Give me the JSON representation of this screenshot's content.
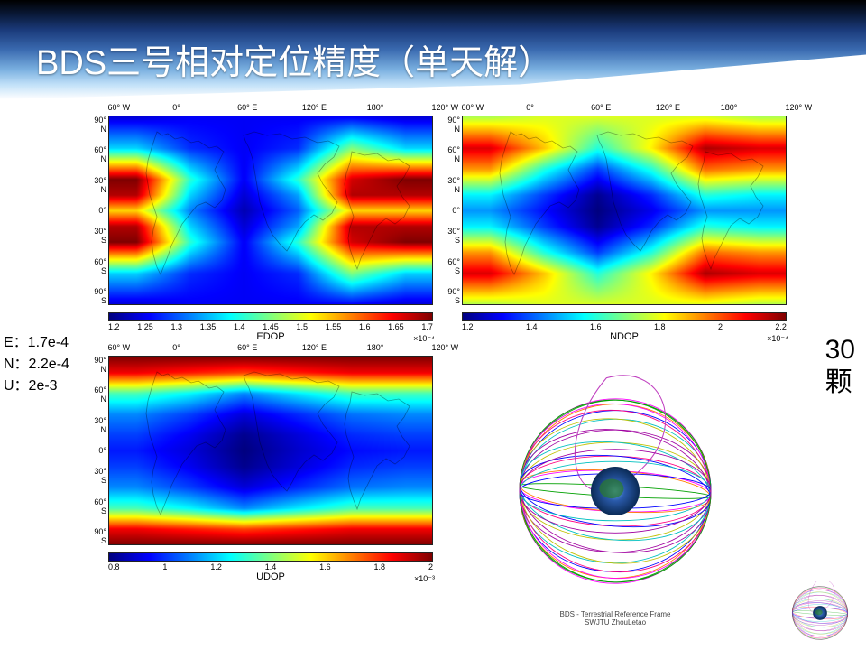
{
  "title": {
    "text": "BDS三号相对定位精度（单天解）",
    "fontsize": 38,
    "color": "#ffffff"
  },
  "side_labels": {
    "E": "E：1.7e-4",
    "N": "N：2.2e-4",
    "U": "U：2e-3"
  },
  "sat_count": {
    "num": "30",
    "unit": "颗"
  },
  "jet_palette": [
    "#00007f",
    "#0000ff",
    "#007fff",
    "#00ffff",
    "#7fff7f",
    "#ffff00",
    "#ff7f00",
    "#ff0000",
    "#7f0000"
  ],
  "lat_ticks": [
    "90° N",
    "60° N",
    "30° N",
    "0°",
    "30° S",
    "60° S",
    "90° S"
  ],
  "lon_ticks": [
    "60° W",
    "0°",
    "60° E",
    "120° E",
    "180°",
    "120° W"
  ],
  "maps": {
    "EDOP": {
      "label": "EDOP",
      "exp": "×10⁻⁴",
      "cb_ticks": [
        "1.2",
        "1.25",
        "1.3",
        "1.35",
        "1.4",
        "1.45",
        "1.5",
        "1.55",
        "1.6",
        "1.65",
        "1.7"
      ],
      "cb_range": [
        1.15,
        1.75
      ],
      "bands": [
        {
          "lat": 90,
          "v": [
            1.2,
            1.22,
            1.22,
            1.22,
            1.22,
            1.2
          ]
        },
        {
          "lat": 60,
          "v": [
            1.35,
            1.25,
            1.22,
            1.25,
            1.45,
            1.35
          ]
        },
        {
          "lat": 30,
          "v": [
            1.75,
            1.4,
            1.22,
            1.4,
            1.7,
            1.75
          ]
        },
        {
          "lat": 15,
          "v": [
            1.72,
            1.35,
            1.2,
            1.32,
            1.72,
            1.72
          ]
        },
        {
          "lat": 0,
          "v": [
            1.55,
            1.3,
            1.18,
            1.28,
            1.55,
            1.55
          ]
        },
        {
          "lat": -15,
          "v": [
            1.72,
            1.35,
            1.2,
            1.32,
            1.72,
            1.72
          ]
        },
        {
          "lat": -30,
          "v": [
            1.75,
            1.4,
            1.22,
            1.4,
            1.7,
            1.75
          ]
        },
        {
          "lat": -60,
          "v": [
            1.35,
            1.25,
            1.22,
            1.25,
            1.45,
            1.35
          ]
        },
        {
          "lat": -90,
          "v": [
            1.2,
            1.22,
            1.22,
            1.22,
            1.22,
            1.2
          ]
        }
      ]
    },
    "NDOP": {
      "label": "NDOP",
      "exp": "×10⁻⁴",
      "cb_ticks": [
        "1.2",
        "1.4",
        "1.6",
        "1.8",
        "2",
        "2.2"
      ],
      "cb_range": [
        1.1,
        2.2
      ],
      "bands": [
        {
          "lat": 90,
          "v": [
            1.7,
            1.75,
            1.75,
            1.75,
            1.75,
            1.7
          ]
        },
        {
          "lat": 60,
          "v": [
            2.1,
            1.85,
            1.55,
            1.8,
            2.15,
            2.1
          ]
        },
        {
          "lat": 40,
          "v": [
            1.9,
            1.55,
            1.3,
            1.55,
            1.95,
            1.9
          ]
        },
        {
          "lat": 15,
          "v": [
            1.5,
            1.3,
            1.12,
            1.28,
            1.55,
            1.5
          ]
        },
        {
          "lat": 0,
          "v": [
            1.4,
            1.25,
            1.1,
            1.22,
            1.4,
            1.4
          ]
        },
        {
          "lat": -15,
          "v": [
            1.5,
            1.3,
            1.12,
            1.28,
            1.55,
            1.5
          ]
        },
        {
          "lat": -40,
          "v": [
            1.9,
            1.55,
            1.3,
            1.55,
            1.95,
            1.9
          ]
        },
        {
          "lat": -60,
          "v": [
            2.1,
            1.85,
            1.55,
            1.8,
            2.15,
            2.1
          ]
        },
        {
          "lat": -90,
          "v": [
            1.7,
            1.75,
            1.75,
            1.75,
            1.75,
            1.7
          ]
        }
      ]
    },
    "UDOP": {
      "label": "UDOP",
      "exp": "×10⁻³",
      "cb_ticks": [
        "0.8",
        "1",
        "1.2",
        "1.4",
        "1.6",
        "1.8",
        "2"
      ],
      "cb_range": [
        0.7,
        2.05
      ],
      "bands": [
        {
          "lat": 90,
          "v": [
            2.05,
            2.05,
            2.05,
            2.05,
            2.05,
            2.05
          ]
        },
        {
          "lat": 75,
          "v": [
            1.9,
            1.85,
            1.8,
            1.85,
            1.9,
            1.9
          ]
        },
        {
          "lat": 55,
          "v": [
            1.3,
            1.2,
            1.05,
            1.18,
            1.3,
            1.3
          ]
        },
        {
          "lat": 35,
          "v": [
            1.05,
            0.95,
            0.82,
            0.92,
            1.02,
            1.05
          ]
        },
        {
          "lat": 15,
          "v": [
            0.95,
            0.85,
            0.72,
            0.82,
            0.92,
            0.95
          ]
        },
        {
          "lat": 0,
          "v": [
            0.9,
            0.82,
            0.7,
            0.8,
            0.88,
            0.9
          ]
        },
        {
          "lat": -15,
          "v": [
            0.95,
            0.85,
            0.72,
            0.82,
            0.92,
            0.95
          ]
        },
        {
          "lat": -35,
          "v": [
            1.05,
            0.95,
            0.82,
            0.92,
            1.02,
            1.05
          ]
        },
        {
          "lat": -55,
          "v": [
            1.3,
            1.2,
            1.05,
            1.18,
            1.3,
            1.3
          ]
        },
        {
          "lat": -75,
          "v": [
            1.9,
            1.85,
            1.8,
            1.85,
            1.9,
            1.9
          ]
        },
        {
          "lat": -90,
          "v": [
            2.05,
            2.05,
            2.05,
            2.05,
            2.05,
            2.05
          ]
        }
      ]
    }
  },
  "orbit": {
    "caption1": "BDS - Terrestrial Reference Frame",
    "caption2": "SWJTU  ZhouLetao",
    "earth_radius": 28,
    "cage_rx": 110,
    "cage_ry": 100,
    "orbit_colors": [
      "#ff00ff",
      "#00a000",
      "#ff8000",
      "#0000ff",
      "#00c0c0",
      "#a000a0",
      "#c0c000",
      "#ff0080"
    ]
  }
}
